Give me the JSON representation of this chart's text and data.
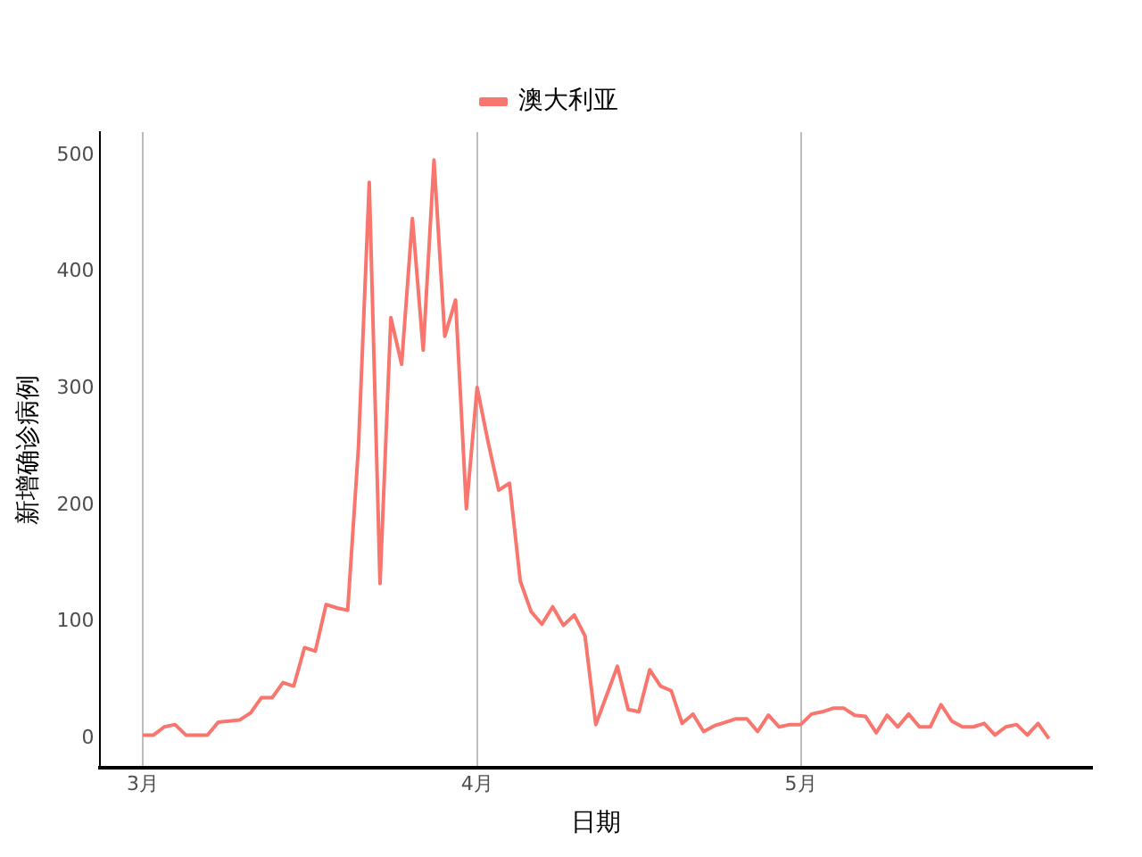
{
  "chart_data": {
    "type": "line",
    "xlabel": "日期",
    "ylabel": "新增确诊病例",
    "x": [
      "--03-01",
      "--03-02",
      "--03-03",
      "--03-04",
      "--03-05",
      "--03-06",
      "--03-07",
      "--03-08",
      "--03-09",
      "--03-10",
      "--03-11",
      "--03-12",
      "--03-13",
      "--03-14",
      "--03-15",
      "--03-16",
      "--03-17",
      "--03-18",
      "--03-19",
      "--03-20",
      "--03-21",
      "--03-22",
      "--03-23",
      "--03-24",
      "--03-25",
      "--03-26",
      "--03-27",
      "--03-28",
      "--03-29",
      "--03-30",
      "--03-31",
      "--04-01",
      "--04-02",
      "--04-03",
      "--04-04",
      "--04-05",
      "--04-06",
      "--04-07",
      "--04-08",
      "--04-09",
      "--04-10",
      "--04-11",
      "--04-12",
      "--04-13",
      "--04-14",
      "--04-15",
      "--04-16",
      "--04-17",
      "--04-18",
      "--04-19",
      "--04-20",
      "--04-21",
      "--04-22",
      "--04-23",
      "--04-24",
      "--04-25",
      "--04-26",
      "--04-27",
      "--04-28",
      "--04-29",
      "--04-30",
      "--05-01",
      "--05-02",
      "--05-03",
      "--05-04",
      "--05-05",
      "--05-06",
      "--05-07",
      "--05-08",
      "--05-09",
      "--05-10",
      "--05-11",
      "--05-12",
      "--05-13",
      "--05-14",
      "--05-15",
      "--05-16",
      "--05-17",
      "--05-18",
      "--05-19",
      "--05-20",
      "--05-21",
      "--05-22",
      "--05-23",
      "--05-24"
    ],
    "series": [
      {
        "name": "澳大利亚",
        "color": "#f8766d",
        "values": [
          3,
          3,
          10,
          12,
          3,
          3,
          3,
          14,
          15,
          16,
          22,
          35,
          35,
          48,
          45,
          78,
          75,
          115,
          112,
          110,
          250,
          477,
          133,
          361,
          321,
          446,
          333,
          496,
          345,
          376,
          197,
          301,
          255,
          213,
          219,
          135,
          109,
          98,
          113,
          97,
          106,
          88,
          12,
          37,
          62,
          25,
          23,
          59,
          45,
          41,
          13,
          21,
          6,
          11,
          14,
          17,
          17,
          6,
          20,
          10,
          12,
          12,
          21,
          23,
          26,
          26,
          20,
          19,
          5,
          20,
          10,
          21,
          10,
          10,
          29,
          15,
          10,
          10,
          13,
          3,
          10,
          12,
          3,
          13,
          0
        ]
      }
    ],
    "xlim": [
      "--02-25",
      "--05-28"
    ],
    "xticks": [
      {
        "value": "--03-01",
        "label": "3月"
      },
      {
        "value": "--04-01",
        "label": "4月"
      },
      {
        "value": "--05-01",
        "label": "5月"
      }
    ],
    "ylim": [
      -25,
      520
    ],
    "yticks": [
      0,
      100,
      200,
      300,
      400,
      500
    ],
    "grid": "x",
    "legend": "top"
  }
}
